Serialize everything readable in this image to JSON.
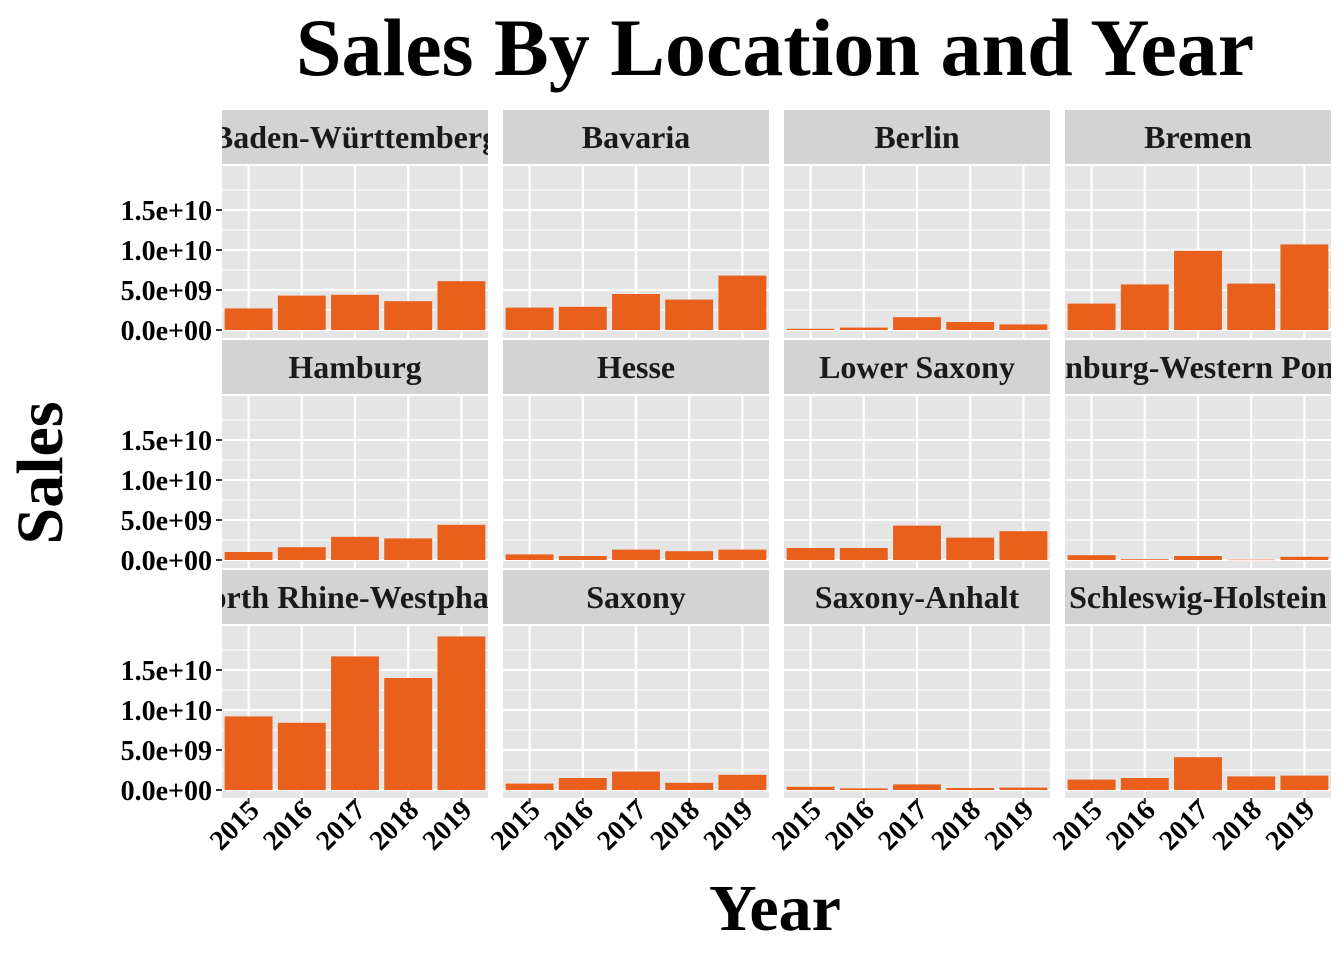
{
  "chart_data": {
    "type": "bar",
    "title": "Sales By Location and Year",
    "xlabel": "Year",
    "ylabel": "Sales",
    "categories": [
      "2015",
      "2016",
      "2017",
      "2018",
      "2019"
    ],
    "y_ticks": [
      {
        "value": 0,
        "label": "0.0e+00"
      },
      {
        "value": 5000000000,
        "label": "5.0e+09"
      },
      {
        "value": 10000000000,
        "label": "1.0e+10"
      },
      {
        "value": 15000000000,
        "label": "1.5e+10"
      }
    ],
    "ylim": [
      -1000000000,
      20500000000
    ],
    "grid": true,
    "bar_color": "#E8601C",
    "panel_background": "#E5E5E5",
    "strip_background": "#D3D3D3",
    "panels": [
      {
        "name": "Baden-Württemberg",
        "values": [
          2700000000,
          4300000000,
          4400000000,
          3600000000,
          6100000000
        ]
      },
      {
        "name": "Bavaria",
        "values": [
          2800000000,
          2900000000,
          4500000000,
          3800000000,
          6800000000
        ]
      },
      {
        "name": "Berlin",
        "values": [
          150000000,
          300000000,
          1600000000,
          1000000000,
          700000000
        ]
      },
      {
        "name": "Bremen",
        "values": [
          3300000000,
          5700000000,
          9900000000,
          5800000000,
          10700000000
        ]
      },
      {
        "name": "Hamburg",
        "values": [
          1000000000,
          1600000000,
          2900000000,
          2700000000,
          4400000000
        ]
      },
      {
        "name": "Hesse",
        "values": [
          700000000,
          500000000,
          1300000000,
          1100000000,
          1300000000
        ]
      },
      {
        "name": "Lower Saxony",
        "values": [
          1500000000,
          1500000000,
          4300000000,
          2800000000,
          3600000000
        ]
      },
      {
        "name": "Mecklenburg-Western Pomerania",
        "values": [
          600000000,
          100000000,
          500000000,
          50000000,
          400000000
        ]
      },
      {
        "name": "North Rhine-Westphalia",
        "values": [
          9200000000,
          8400000000,
          16700000000,
          14000000000,
          19200000000
        ]
      },
      {
        "name": "Saxony",
        "values": [
          800000000,
          1500000000,
          2300000000,
          900000000,
          1900000000
        ]
      },
      {
        "name": "Saxony-Anhalt",
        "values": [
          400000000,
          200000000,
          700000000,
          250000000,
          300000000
        ]
      },
      {
        "name": "Schleswig-Holstein",
        "values": [
          1300000000,
          1500000000,
          4100000000,
          1700000000,
          1800000000
        ]
      }
    ]
  }
}
